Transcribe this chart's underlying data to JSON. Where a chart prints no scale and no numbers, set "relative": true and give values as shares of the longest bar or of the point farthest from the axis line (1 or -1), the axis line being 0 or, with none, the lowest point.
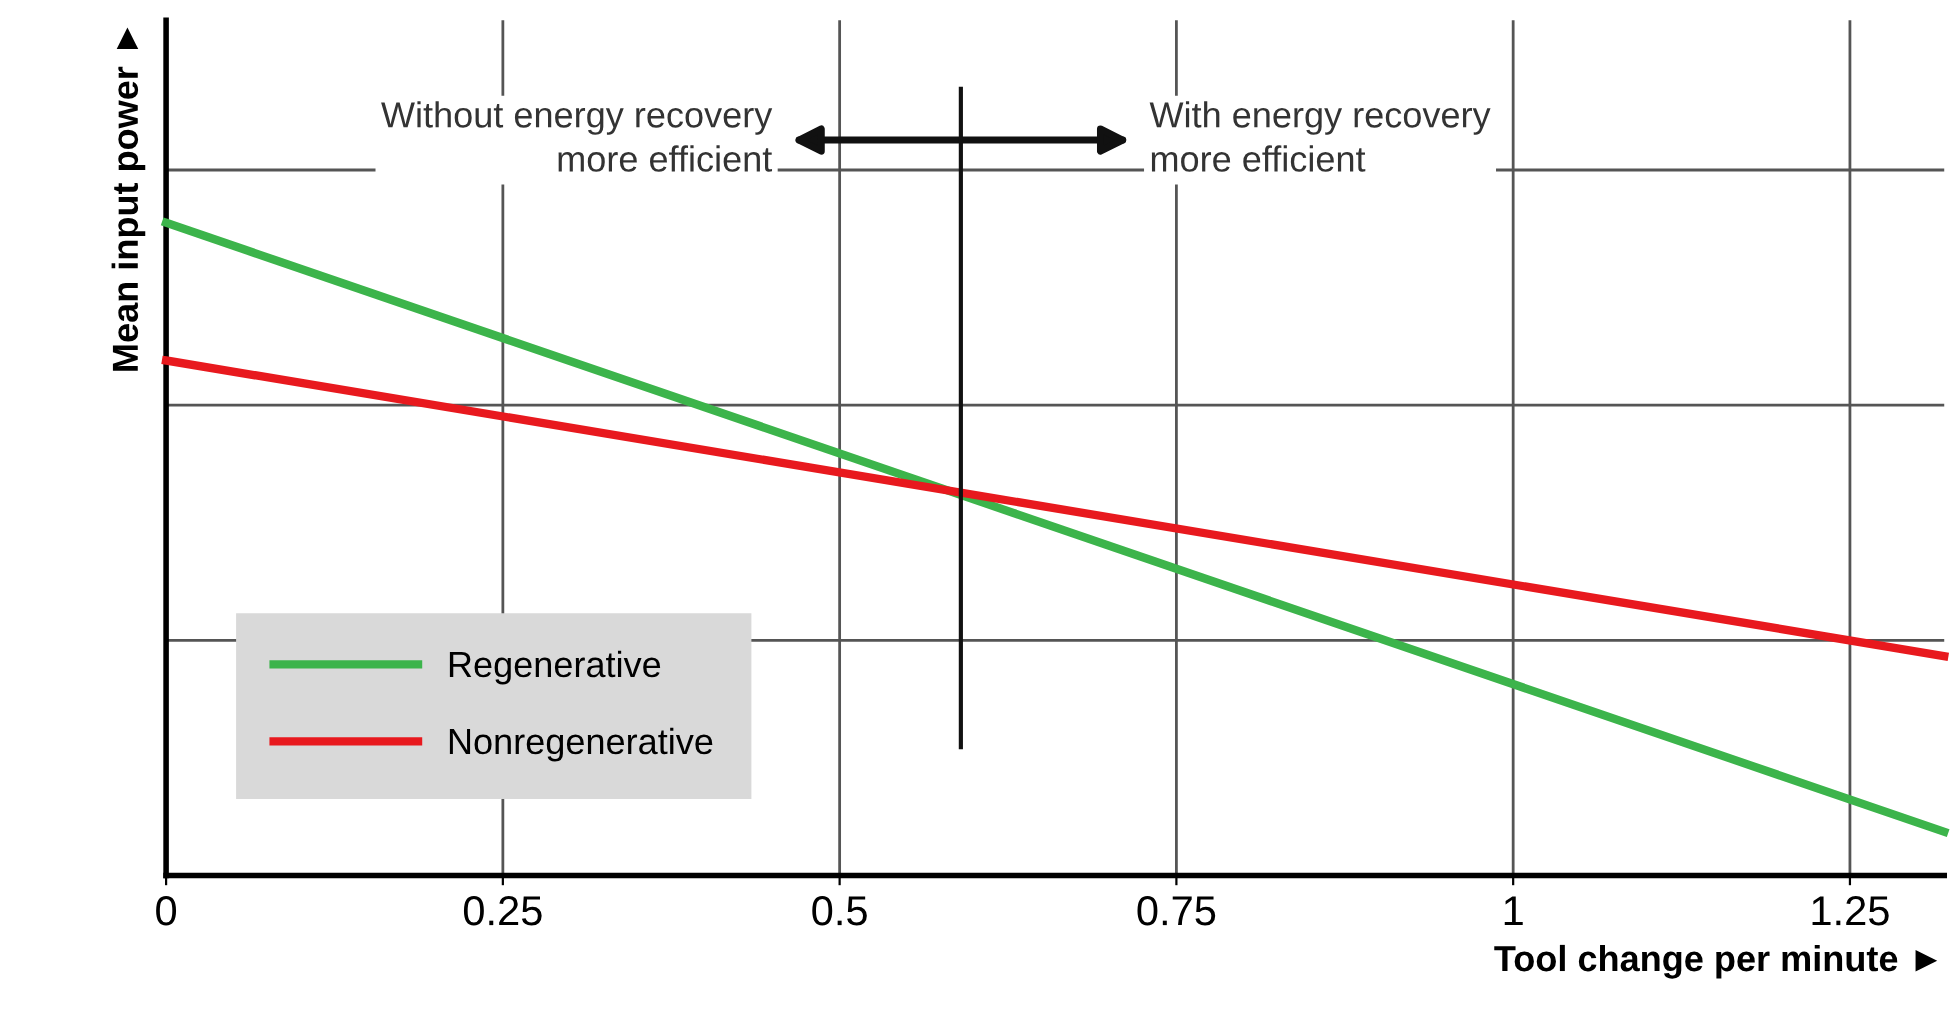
{
  "chart_data": {
    "type": "line",
    "xlabel": "Tool change per minute ►",
    "ylabel": "Mean input power ►",
    "relative": true,
    "xlim": [
      0,
      1.32
    ],
    "x": [
      0,
      1.32
    ],
    "xticks": [
      0,
      0.25,
      0.5,
      0.75,
      1,
      1.25
    ],
    "series": [
      {
        "name": "Regenerative",
        "color": "#3cb44b",
        "values": [
          1,
          0.067
        ]
      },
      {
        "name": "Nonregenerative",
        "color": "#e8191e",
        "values": [
          0.789,
          0.336
        ]
      }
    ],
    "ref_lines": [
      {
        "axis": "x",
        "value": 0.59,
        "color": "#111111"
      }
    ],
    "annotations": [
      "Without energy recovery\nmore efficient",
      "With energy recovery\nmore efficient"
    ],
    "grid": true,
    "legend": "bottom left",
    "line_style": "solid",
    "marker": "none"
  }
}
